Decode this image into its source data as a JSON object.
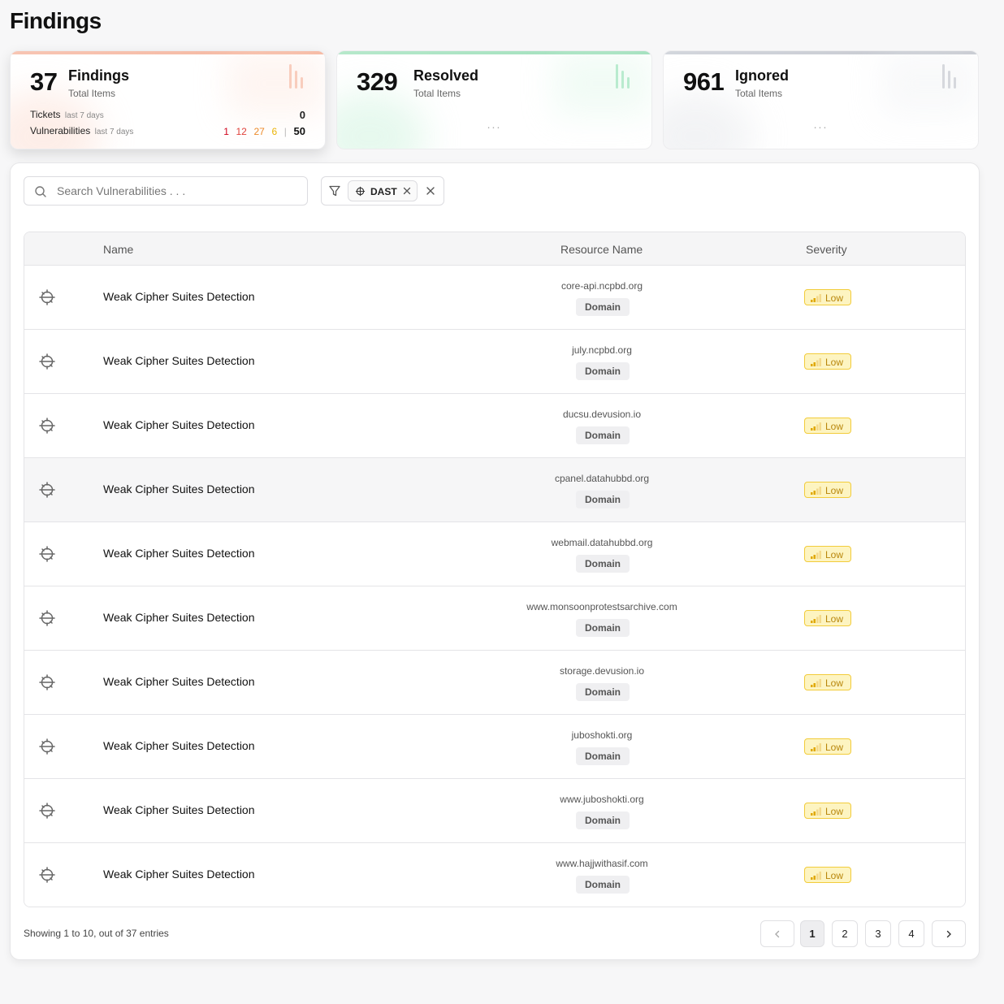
{
  "page": {
    "title": "Findings"
  },
  "stats": {
    "findings": {
      "value": "37",
      "label": "Findings",
      "sub": "Total Items",
      "tickets_label": "Tickets",
      "tickets_period": "last 7 days",
      "tickets_value": "0",
      "vulns_label": "Vulnerabilities",
      "vulns_period": "last 7 days",
      "sev_counts": {
        "critical": "1",
        "high": "12",
        "medium": "27",
        "low": "6",
        "separator": "|",
        "total": "50"
      }
    },
    "resolved": {
      "value": "329",
      "label": "Resolved",
      "sub": "Total Items",
      "dots": "..."
    },
    "ignored": {
      "value": "961",
      "label": "Ignored",
      "sub": "Total Items",
      "dots": "..."
    }
  },
  "colors": {
    "critical": "#d0021b",
    "high": "#e0413b",
    "medium": "#ec8a2a",
    "low": "#eab308",
    "findings_accent": "#f6b7a0",
    "resolved_accent": "#9fdfbb",
    "ignored_accent": "#c6c9d0"
  },
  "search": {
    "placeholder": "Search Vulnerabilities . . .",
    "value": "",
    "icon": "search-icon"
  },
  "filter": {
    "icon": "filter-icon",
    "chip_label": "DAST",
    "chip_icon": "dast-icon"
  },
  "table": {
    "headers": {
      "name": "Name",
      "resource": "Resource Name",
      "severity": "Severity"
    },
    "rows": [
      {
        "name": "Weak Cipher Suites Detection",
        "resource": "core-api.ncpbd.org",
        "type": "Domain",
        "severity": "Low"
      },
      {
        "name": "Weak Cipher Suites Detection",
        "resource": "july.ncpbd.org",
        "type": "Domain",
        "severity": "Low"
      },
      {
        "name": "Weak Cipher Suites Detection",
        "resource": "ducsu.devusion.io",
        "type": "Domain",
        "severity": "Low"
      },
      {
        "name": "Weak Cipher Suites Detection",
        "resource": "cpanel.datahubbd.org",
        "type": "Domain",
        "severity": "Low"
      },
      {
        "name": "Weak Cipher Suites Detection",
        "resource": "webmail.datahubbd.org",
        "type": "Domain",
        "severity": "Low"
      },
      {
        "name": "Weak Cipher Suites Detection",
        "resource": "www.monsoonprotestsarchive.com",
        "type": "Domain",
        "severity": "Low"
      },
      {
        "name": "Weak Cipher Suites Detection",
        "resource": "storage.devusion.io",
        "type": "Domain",
        "severity": "Low"
      },
      {
        "name": "Weak Cipher Suites Detection",
        "resource": "juboshokti.org",
        "type": "Domain",
        "severity": "Low"
      },
      {
        "name": "Weak Cipher Suites Detection",
        "resource": "www.juboshokti.org",
        "type": "Domain",
        "severity": "Low"
      },
      {
        "name": "Weak Cipher Suites Detection",
        "resource": "www.hajjwithasif.com",
        "type": "Domain",
        "severity": "Low"
      }
    ]
  },
  "pagination": {
    "summary": "Showing 1 to 10, out of 37 entries",
    "prev": "‹",
    "next": "›",
    "pages": [
      "1",
      "2",
      "3",
      "4"
    ],
    "current": "1"
  }
}
